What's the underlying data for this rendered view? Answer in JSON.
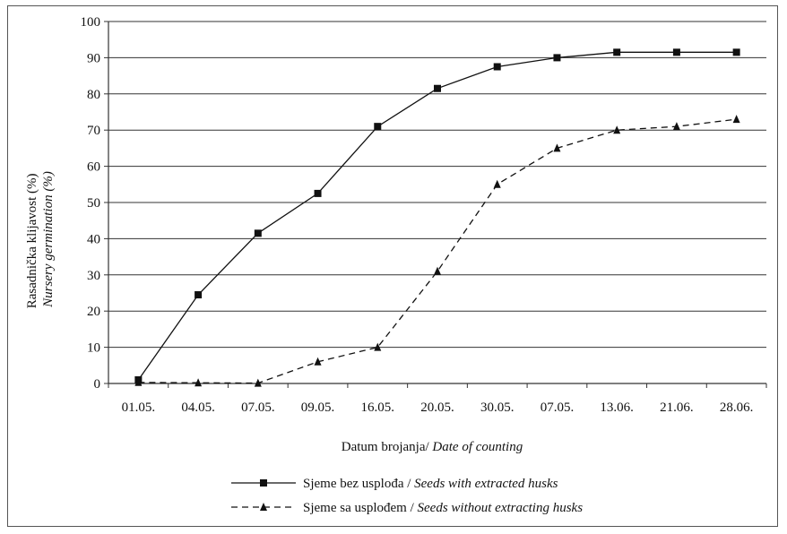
{
  "chart_data": {
    "type": "line",
    "title": "",
    "xlabel": {
      "main": "Datum brojanja/",
      "italic": "Date of counting"
    },
    "ylabel": {
      "main": "Rasadnička klijavost (%)",
      "italic": "Nursery germination (%)"
    },
    "categories": [
      "01.05.",
      "04.05.",
      "07.05.",
      "09.05.",
      "16.05.",
      "20.05.",
      "30.05.",
      "07.05.",
      "13.06.",
      "21.06.",
      "28.06."
    ],
    "ylim": [
      0,
      100
    ],
    "yticks": [
      "0",
      "10",
      "20",
      "30",
      "40",
      "50",
      "60",
      "70",
      "80",
      "90",
      "100"
    ],
    "grid": true,
    "legend_position": "bottom",
    "series": [
      {
        "name": "Sjeme bez uspl oda",
        "name_plain": "Sjeme bez usplođa / ",
        "name_italic": "Seeds with extracted husks",
        "style": "solid",
        "marker": "square",
        "values": [
          1,
          24.5,
          41.5,
          52.5,
          71,
          81.5,
          87.5,
          90,
          91.5,
          91.5,
          91.5
        ]
      },
      {
        "name": "Sjeme sa uspl odem",
        "name_plain": "Sjeme sa usplođem / ",
        "name_italic": "Seeds without extracting husks",
        "style": "dashed",
        "marker": "triangle",
        "values": [
          0.3,
          0.2,
          0.1,
          6,
          10,
          31,
          55,
          65,
          70,
          71,
          73
        ]
      }
    ],
    "colors": {
      "line": "#111111",
      "grid": "#333333"
    }
  }
}
